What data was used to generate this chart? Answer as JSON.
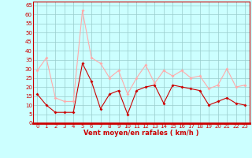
{
  "x": [
    0,
    1,
    2,
    3,
    4,
    5,
    6,
    7,
    8,
    9,
    10,
    11,
    12,
    13,
    14,
    15,
    16,
    17,
    18,
    19,
    20,
    21,
    22,
    23
  ],
  "avg_wind": [
    16,
    10,
    6,
    6,
    6,
    33,
    23,
    8,
    16,
    18,
    5,
    18,
    20,
    21,
    11,
    21,
    20,
    19,
    18,
    10,
    12,
    14,
    11,
    10
  ],
  "gust_wind": [
    29,
    36,
    14,
    12,
    12,
    62,
    36,
    33,
    25,
    29,
    16,
    25,
    32,
    22,
    29,
    26,
    29,
    25,
    26,
    19,
    21,
    30,
    20,
    21
  ],
  "avg_color": "#cc0000",
  "gust_color": "#ffaaaa",
  "bg_color": "#ccffff",
  "grid_color": "#99cccc",
  "xlabel": "Vent moyen/en rafales ( km/h )",
  "yticks": [
    0,
    5,
    10,
    15,
    20,
    25,
    30,
    35,
    40,
    45,
    50,
    55,
    60,
    65
  ],
  "ylim": [
    0,
    67
  ],
  "xlim": [
    -0.5,
    23.5
  ],
  "xlabel_fontsize": 6.0,
  "tick_fontsize": 5.0
}
